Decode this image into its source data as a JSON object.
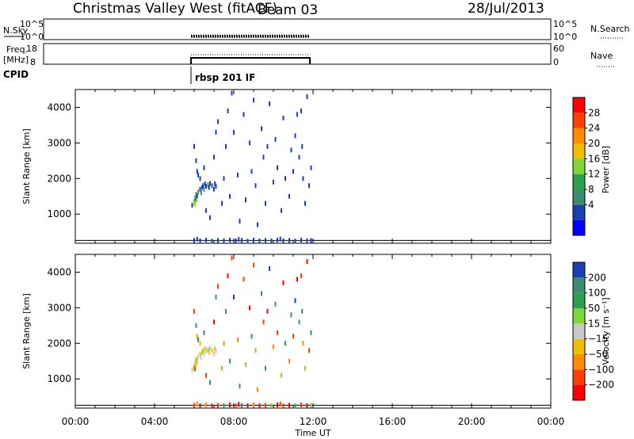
{
  "header": {
    "station": "Christmas Valley West (fitACF)",
    "beam": "Beam 03",
    "date": "28/Jul/2013"
  },
  "top_panels": {
    "nsky": {
      "label": "N.Sky",
      "ticks": [
        "10^5",
        "10^0"
      ],
      "right_ticks": [
        "10^5",
        "10^0"
      ],
      "right_label": "N.Search"
    },
    "freq": {
      "label_line1": "Freq.",
      "label_line2": "[MHz]",
      "ticks": [
        "18",
        "8"
      ],
      "right_ticks": [
        "60",
        "0"
      ],
      "right_label": "Nave"
    },
    "cpid": {
      "label": "CPID",
      "program": "rbsp 201 IF"
    }
  },
  "chart_data": [
    {
      "type": "scatter",
      "name": "power",
      "ylabel": "Slant Range [km]",
      "xlabel": "Time UT",
      "xlim": [
        0,
        24
      ],
      "ylim": [
        180,
        4500
      ],
      "x_ticks": [
        "00:00",
        "04:00",
        "08:00",
        "12:00",
        "16:00",
        "20:00",
        "00:00"
      ],
      "y_ticks": [
        1000,
        2000,
        3000,
        4000
      ],
      "colorbar": {
        "label": "Power [dB]",
        "ticks": [
          "28",
          "24",
          "20",
          "16",
          "12",
          "8",
          "4"
        ]
      },
      "points": [
        [
          5.9,
          1250,
          4
        ],
        [
          6.0,
          1350,
          8
        ],
        [
          6.05,
          1450,
          12
        ],
        [
          6.1,
          1550,
          8
        ],
        [
          6.15,
          1500,
          4
        ],
        [
          6.2,
          1620,
          8
        ],
        [
          6.3,
          1700,
          4
        ],
        [
          6.35,
          1600,
          8
        ],
        [
          6.4,
          1750,
          4
        ],
        [
          6.45,
          1800,
          4
        ],
        [
          6.5,
          1700,
          8
        ],
        [
          6.55,
          1850,
          4
        ],
        [
          6.6,
          1780,
          4
        ],
        [
          6.7,
          1820,
          8
        ],
        [
          6.75,
          1750,
          4
        ],
        [
          6.8,
          1860,
          4
        ],
        [
          6.9,
          1800,
          4
        ],
        [
          7.0,
          1700,
          4
        ],
        [
          7.05,
          1850,
          4
        ],
        [
          7.1,
          1780,
          4
        ],
        [
          6.0,
          1300,
          16
        ],
        [
          6.05,
          1280,
          20
        ],
        [
          6.1,
          1400,
          12
        ],
        [
          6.0,
          2900,
          4
        ],
        [
          6.1,
          2500,
          4
        ],
        [
          6.15,
          2200,
          4
        ],
        [
          6.2,
          2100,
          4
        ],
        [
          6.3,
          2000,
          4
        ],
        [
          6.5,
          2300,
          4
        ],
        [
          6.6,
          1100,
          4
        ],
        [
          6.8,
          900,
          4
        ],
        [
          7.0,
          2600,
          4
        ],
        [
          7.1,
          3300,
          4
        ],
        [
          7.2,
          3600,
          4
        ],
        [
          7.4,
          1300,
          4
        ],
        [
          7.5,
          2000,
          4
        ],
        [
          7.6,
          2900,
          4
        ],
        [
          7.7,
          3900,
          4
        ],
        [
          7.8,
          1500,
          4
        ],
        [
          7.9,
          4400,
          4
        ],
        [
          8.0,
          3300,
          4
        ],
        [
          8.2,
          2100,
          4
        ],
        [
          8.3,
          800,
          4
        ],
        [
          8.5,
          3800,
          4
        ],
        [
          8.6,
          1400,
          4
        ],
        [
          8.8,
          3000,
          4
        ],
        [
          8.9,
          2200,
          4
        ],
        [
          9.0,
          4200,
          4
        ],
        [
          9.1,
          1800,
          4
        ],
        [
          9.2,
          700,
          4
        ],
        [
          9.4,
          3400,
          4
        ],
        [
          9.5,
          2600,
          4
        ],
        [
          9.6,
          1300,
          4
        ],
        [
          9.7,
          2900,
          4
        ],
        [
          9.8,
          4100,
          4
        ],
        [
          10.0,
          1900,
          4
        ],
        [
          10.1,
          3100,
          4
        ],
        [
          10.2,
          2300,
          4
        ],
        [
          10.4,
          1100,
          4
        ],
        [
          10.5,
          3700,
          4
        ],
        [
          10.6,
          2000,
          4
        ],
        [
          10.8,
          1500,
          4
        ],
        [
          10.9,
          2800,
          4
        ],
        [
          11.0,
          2200,
          4
        ],
        [
          11.1,
          3200,
          4
        ],
        [
          11.2,
          3800,
          4
        ],
        [
          11.3,
          2600,
          4
        ],
        [
          11.4,
          3900,
          4
        ],
        [
          11.45,
          2900,
          4
        ],
        [
          11.5,
          2000,
          4
        ],
        [
          11.6,
          1300,
          4
        ],
        [
          11.7,
          4300,
          4
        ],
        [
          11.8,
          1800,
          4
        ],
        [
          11.9,
          2300,
          4
        ],
        [
          6.0,
          260,
          4
        ],
        [
          6.3,
          250,
          4
        ],
        [
          6.6,
          270,
          4
        ],
        [
          6.9,
          240,
          4
        ],
        [
          7.2,
          260,
          4
        ],
        [
          7.5,
          250,
          4
        ],
        [
          7.8,
          270,
          4
        ],
        [
          8.1,
          250,
          4
        ],
        [
          8.4,
          260,
          4
        ],
        [
          8.7,
          240,
          4
        ],
        [
          9.0,
          270,
          4
        ],
        [
          9.3,
          250,
          4
        ],
        [
          9.6,
          260,
          4
        ],
        [
          9.9,
          250,
          4
        ],
        [
          10.2,
          270,
          4
        ],
        [
          10.5,
          250,
          4
        ],
        [
          10.8,
          260,
          4
        ],
        [
          11.1,
          240,
          4
        ],
        [
          11.4,
          270,
          4
        ],
        [
          11.7,
          250,
          4
        ],
        [
          11.9,
          260,
          4
        ],
        [
          6.15,
          300,
          4
        ],
        [
          8.25,
          290,
          4
        ],
        [
          10.35,
          300,
          4
        ]
      ]
    },
    {
      "type": "scatter",
      "name": "velocity",
      "ylabel": "Slant Range [km]",
      "xlabel": "Time UT",
      "xlim": [
        0,
        24
      ],
      "ylim": [
        180,
        4500
      ],
      "x_ticks": [
        "00:00",
        "04:00",
        "08:00",
        "12:00",
        "16:00",
        "20:00",
        "00:00"
      ],
      "y_ticks": [
        1000,
        2000,
        3000,
        4000
      ],
      "colorbar": {
        "label": "Velocity [m s⁻¹]",
        "ticks": [
          "200",
          "100",
          "50",
          "15",
          "−15",
          "−50",
          "−100",
          "−200"
        ]
      },
      "points": [
        [
          5.9,
          1250,
          0
        ],
        [
          6.0,
          1350,
          -30
        ],
        [
          6.05,
          1450,
          0
        ],
        [
          6.1,
          1550,
          30
        ],
        [
          6.15,
          1500,
          -30
        ],
        [
          6.2,
          1620,
          0
        ],
        [
          6.3,
          1700,
          -30
        ],
        [
          6.35,
          1600,
          0
        ],
        [
          6.4,
          1750,
          30
        ],
        [
          6.45,
          1800,
          -30
        ],
        [
          6.5,
          1700,
          0
        ],
        [
          6.55,
          1850,
          -30
        ],
        [
          6.6,
          1780,
          0
        ],
        [
          6.7,
          1820,
          30
        ],
        [
          6.75,
          1750,
          -30
        ],
        [
          6.8,
          1860,
          0
        ],
        [
          6.9,
          1800,
          -30
        ],
        [
          7.0,
          1700,
          0
        ],
        [
          7.05,
          1850,
          -30
        ],
        [
          7.1,
          1780,
          0
        ],
        [
          6.0,
          1300,
          -70
        ],
        [
          6.05,
          1280,
          70
        ],
        [
          6.1,
          1400,
          -30
        ],
        [
          6.0,
          2900,
          -150
        ],
        [
          6.1,
          2500,
          150
        ],
        [
          6.15,
          2200,
          -70
        ],
        [
          6.2,
          2100,
          70
        ],
        [
          6.3,
          2000,
          -30
        ],
        [
          6.5,
          2300,
          150
        ],
        [
          6.6,
          1100,
          -150
        ],
        [
          6.8,
          900,
          70
        ],
        [
          7.0,
          2600,
          -300
        ],
        [
          7.1,
          3300,
          150
        ],
        [
          7.2,
          3600,
          -150
        ],
        [
          7.4,
          1300,
          30
        ],
        [
          7.5,
          2000,
          -70
        ],
        [
          7.6,
          2900,
          150
        ],
        [
          7.7,
          3900,
          -300
        ],
        [
          7.8,
          1500,
          70
        ],
        [
          7.9,
          4400,
          -150
        ],
        [
          8.0,
          3300,
          300
        ],
        [
          8.2,
          2100,
          -70
        ],
        [
          8.3,
          800,
          150
        ],
        [
          8.5,
          3800,
          -150
        ],
        [
          8.6,
          1400,
          30
        ],
        [
          8.8,
          3000,
          -300
        ],
        [
          8.9,
          2200,
          70
        ],
        [
          9.0,
          4200,
          -150
        ],
        [
          9.1,
          1800,
          30
        ],
        [
          9.2,
          700,
          -70
        ],
        [
          9.4,
          3400,
          150
        ],
        [
          9.5,
          2600,
          -150
        ],
        [
          9.6,
          1300,
          70
        ],
        [
          9.7,
          2900,
          -300
        ],
        [
          9.8,
          4100,
          300
        ],
        [
          10.0,
          1900,
          -70
        ],
        [
          10.1,
          3100,
          150
        ],
        [
          10.2,
          2300,
          -150
        ],
        [
          10.4,
          1100,
          30
        ],
        [
          10.5,
          3700,
          -300
        ],
        [
          10.6,
          2000,
          70
        ],
        [
          10.8,
          1500,
          -70
        ],
        [
          10.9,
          2800,
          150
        ],
        [
          11.0,
          2200,
          -150
        ],
        [
          11.1,
          3200,
          300
        ],
        [
          11.2,
          3800,
          -300
        ],
        [
          11.3,
          2600,
          70
        ],
        [
          11.4,
          3900,
          -150
        ],
        [
          11.45,
          2900,
          150
        ],
        [
          11.5,
          2000,
          -70
        ],
        [
          11.6,
          1300,
          30
        ],
        [
          11.7,
          4300,
          -300
        ],
        [
          11.8,
          1800,
          -150
        ],
        [
          11.9,
          2300,
          70
        ],
        [
          6.0,
          260,
          -150
        ],
        [
          6.3,
          250,
          -300
        ],
        [
          6.6,
          270,
          -70
        ],
        [
          6.9,
          240,
          -300
        ],
        [
          7.2,
          260,
          -150
        ],
        [
          7.5,
          250,
          70
        ],
        [
          7.8,
          270,
          -300
        ],
        [
          8.1,
          250,
          -150
        ],
        [
          8.4,
          260,
          150
        ],
        [
          8.7,
          240,
          -300
        ],
        [
          9.0,
          270,
          -70
        ],
        [
          9.3,
          250,
          -300
        ],
        [
          9.6,
          260,
          -150
        ],
        [
          9.9,
          250,
          30
        ],
        [
          10.2,
          270,
          -300
        ],
        [
          10.5,
          250,
          -150
        ],
        [
          10.8,
          260,
          -300
        ],
        [
          11.1,
          240,
          70
        ],
        [
          11.4,
          270,
          -150
        ],
        [
          11.7,
          250,
          -300
        ],
        [
          11.9,
          260,
          30
        ],
        [
          6.15,
          300,
          -70
        ],
        [
          8.25,
          290,
          -300
        ],
        [
          10.35,
          300,
          -150
        ]
      ]
    }
  ],
  "colors": {
    "power": [
      "#0000ff",
      "#1a3fb0",
      "#3a8d6e",
      "#2e9e4f",
      "#7fd63a",
      "#f0c000",
      "#ff8c00",
      "#ff4000",
      "#ff0000"
    ],
    "velocity": [
      "#1a3fb0",
      "#3a8d6e",
      "#2e9e4f",
      "#7fd63a",
      "#c8c8c8",
      "#f0c000",
      "#ff8c00",
      "#ff4000",
      "#ff0000"
    ]
  }
}
